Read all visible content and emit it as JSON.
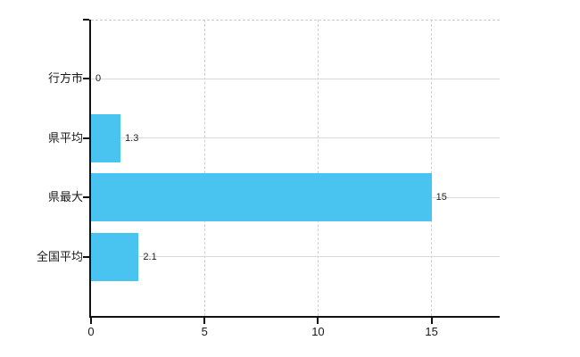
{
  "chart_data": {
    "type": "bar",
    "orientation": "horizontal",
    "title": "",
    "xlabel": "",
    "ylabel": "",
    "categories": [
      "行方市",
      "県平均",
      "県最大",
      "全国平均"
    ],
    "values": [
      0,
      1.3,
      15,
      2.1
    ],
    "value_labels": [
      "0",
      "1.3",
      "15",
      "2.1"
    ],
    "xlim": [
      0,
      18
    ],
    "xticks": [
      0,
      5,
      10,
      15
    ],
    "xtick_labels": [
      "0",
      "5",
      "10",
      "15"
    ],
    "grid": true,
    "legend_position": "none",
    "colors": {
      "bar": "#49c3f0",
      "axis": "#111111",
      "h_gridline": "#d5dcd4",
      "v_gridline": "#d3ced3",
      "top_border": "#cfcacf",
      "axis_text": "#1a1a1a",
      "value_text": "#222222",
      "background": "#ffffff"
    }
  }
}
